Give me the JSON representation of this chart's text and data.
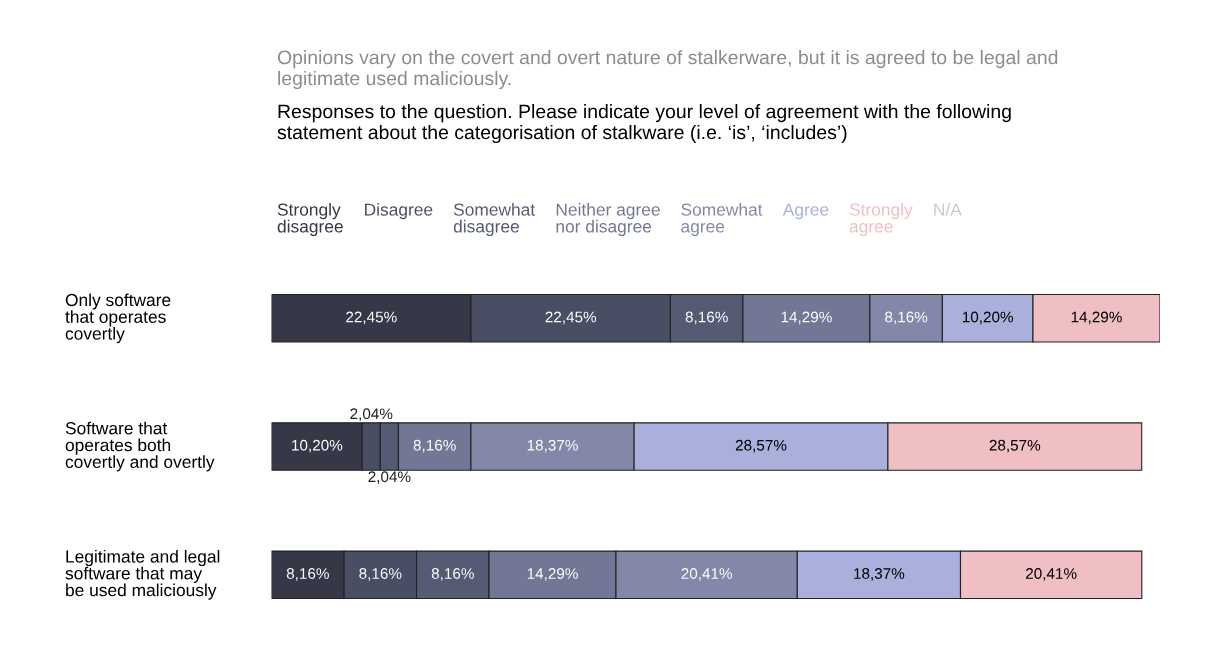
{
  "chart_data": {
    "type": "bar",
    "orientation": "horizontal",
    "stacked": true,
    "data_labels": true,
    "legend": "top",
    "title": "Opinions vary on the covert and overt nature of stalkerware, but it is agreed to be legal and legitimate used maliciously.",
    "subtitle": "Responses to the question. Please indicate your level of agreement with the following statement about the categorisation of stalkware (i.e. ‘is’, ‘includes’)",
    "categories": [
      "Only software\nthat operates\ncovertly",
      "Software that\noperates both\ncovertly and overtly",
      "Legitimate and legal\nsoftware that may\nbe used maliciously"
    ],
    "series": [
      {
        "name": "Strongly\ndisagree",
        "color": "#363848",
        "values": [
          22.45,
          10.2,
          8.16
        ],
        "value_labels": [
          "22,45%",
          "10,20%",
          "8,16%"
        ]
      },
      {
        "name": "Disagree",
        "color": "#4a4e64",
        "values": [
          22.45,
          2.04,
          8.16
        ],
        "value_labels": [
          "22,45%",
          "2,04%",
          "8,16%"
        ]
      },
      {
        "name": "Somewhat\ndisagree",
        "color": "#555b72",
        "values": [
          8.16,
          2.04,
          8.16
        ],
        "value_labels": [
          "8,16%",
          "2,04%",
          "8,16%"
        ]
      },
      {
        "name": "Neither agree\nnor disagree",
        "color": "#737796",
        "values": [
          14.29,
          8.16,
          14.29
        ],
        "value_labels": [
          "14,29%",
          "8,16%",
          "14,29%"
        ]
      },
      {
        "name": "Somewhat\nagree",
        "color": "#8388a8",
        "values": [
          8.16,
          18.37,
          20.41
        ],
        "value_labels": [
          "8,16%",
          "18,37%",
          "20,41%"
        ]
      },
      {
        "name": "Agree",
        "color": "#a9b0db",
        "values": [
          10.2,
          28.57,
          18.37
        ],
        "value_labels": [
          "10,20%",
          "28,57%",
          "18,37%"
        ]
      },
      {
        "name": "Strongly\nagree",
        "color": "#efbfc3",
        "values": [
          14.29,
          28.57,
          20.41
        ],
        "value_labels": [
          "14,29%",
          "28,57%",
          "20,41%"
        ]
      },
      {
        "name": "N/A",
        "color": "#c8c8c8",
        "values": [
          null,
          null,
          null
        ],
        "value_labels": [
          null,
          null,
          null
        ]
      }
    ]
  }
}
